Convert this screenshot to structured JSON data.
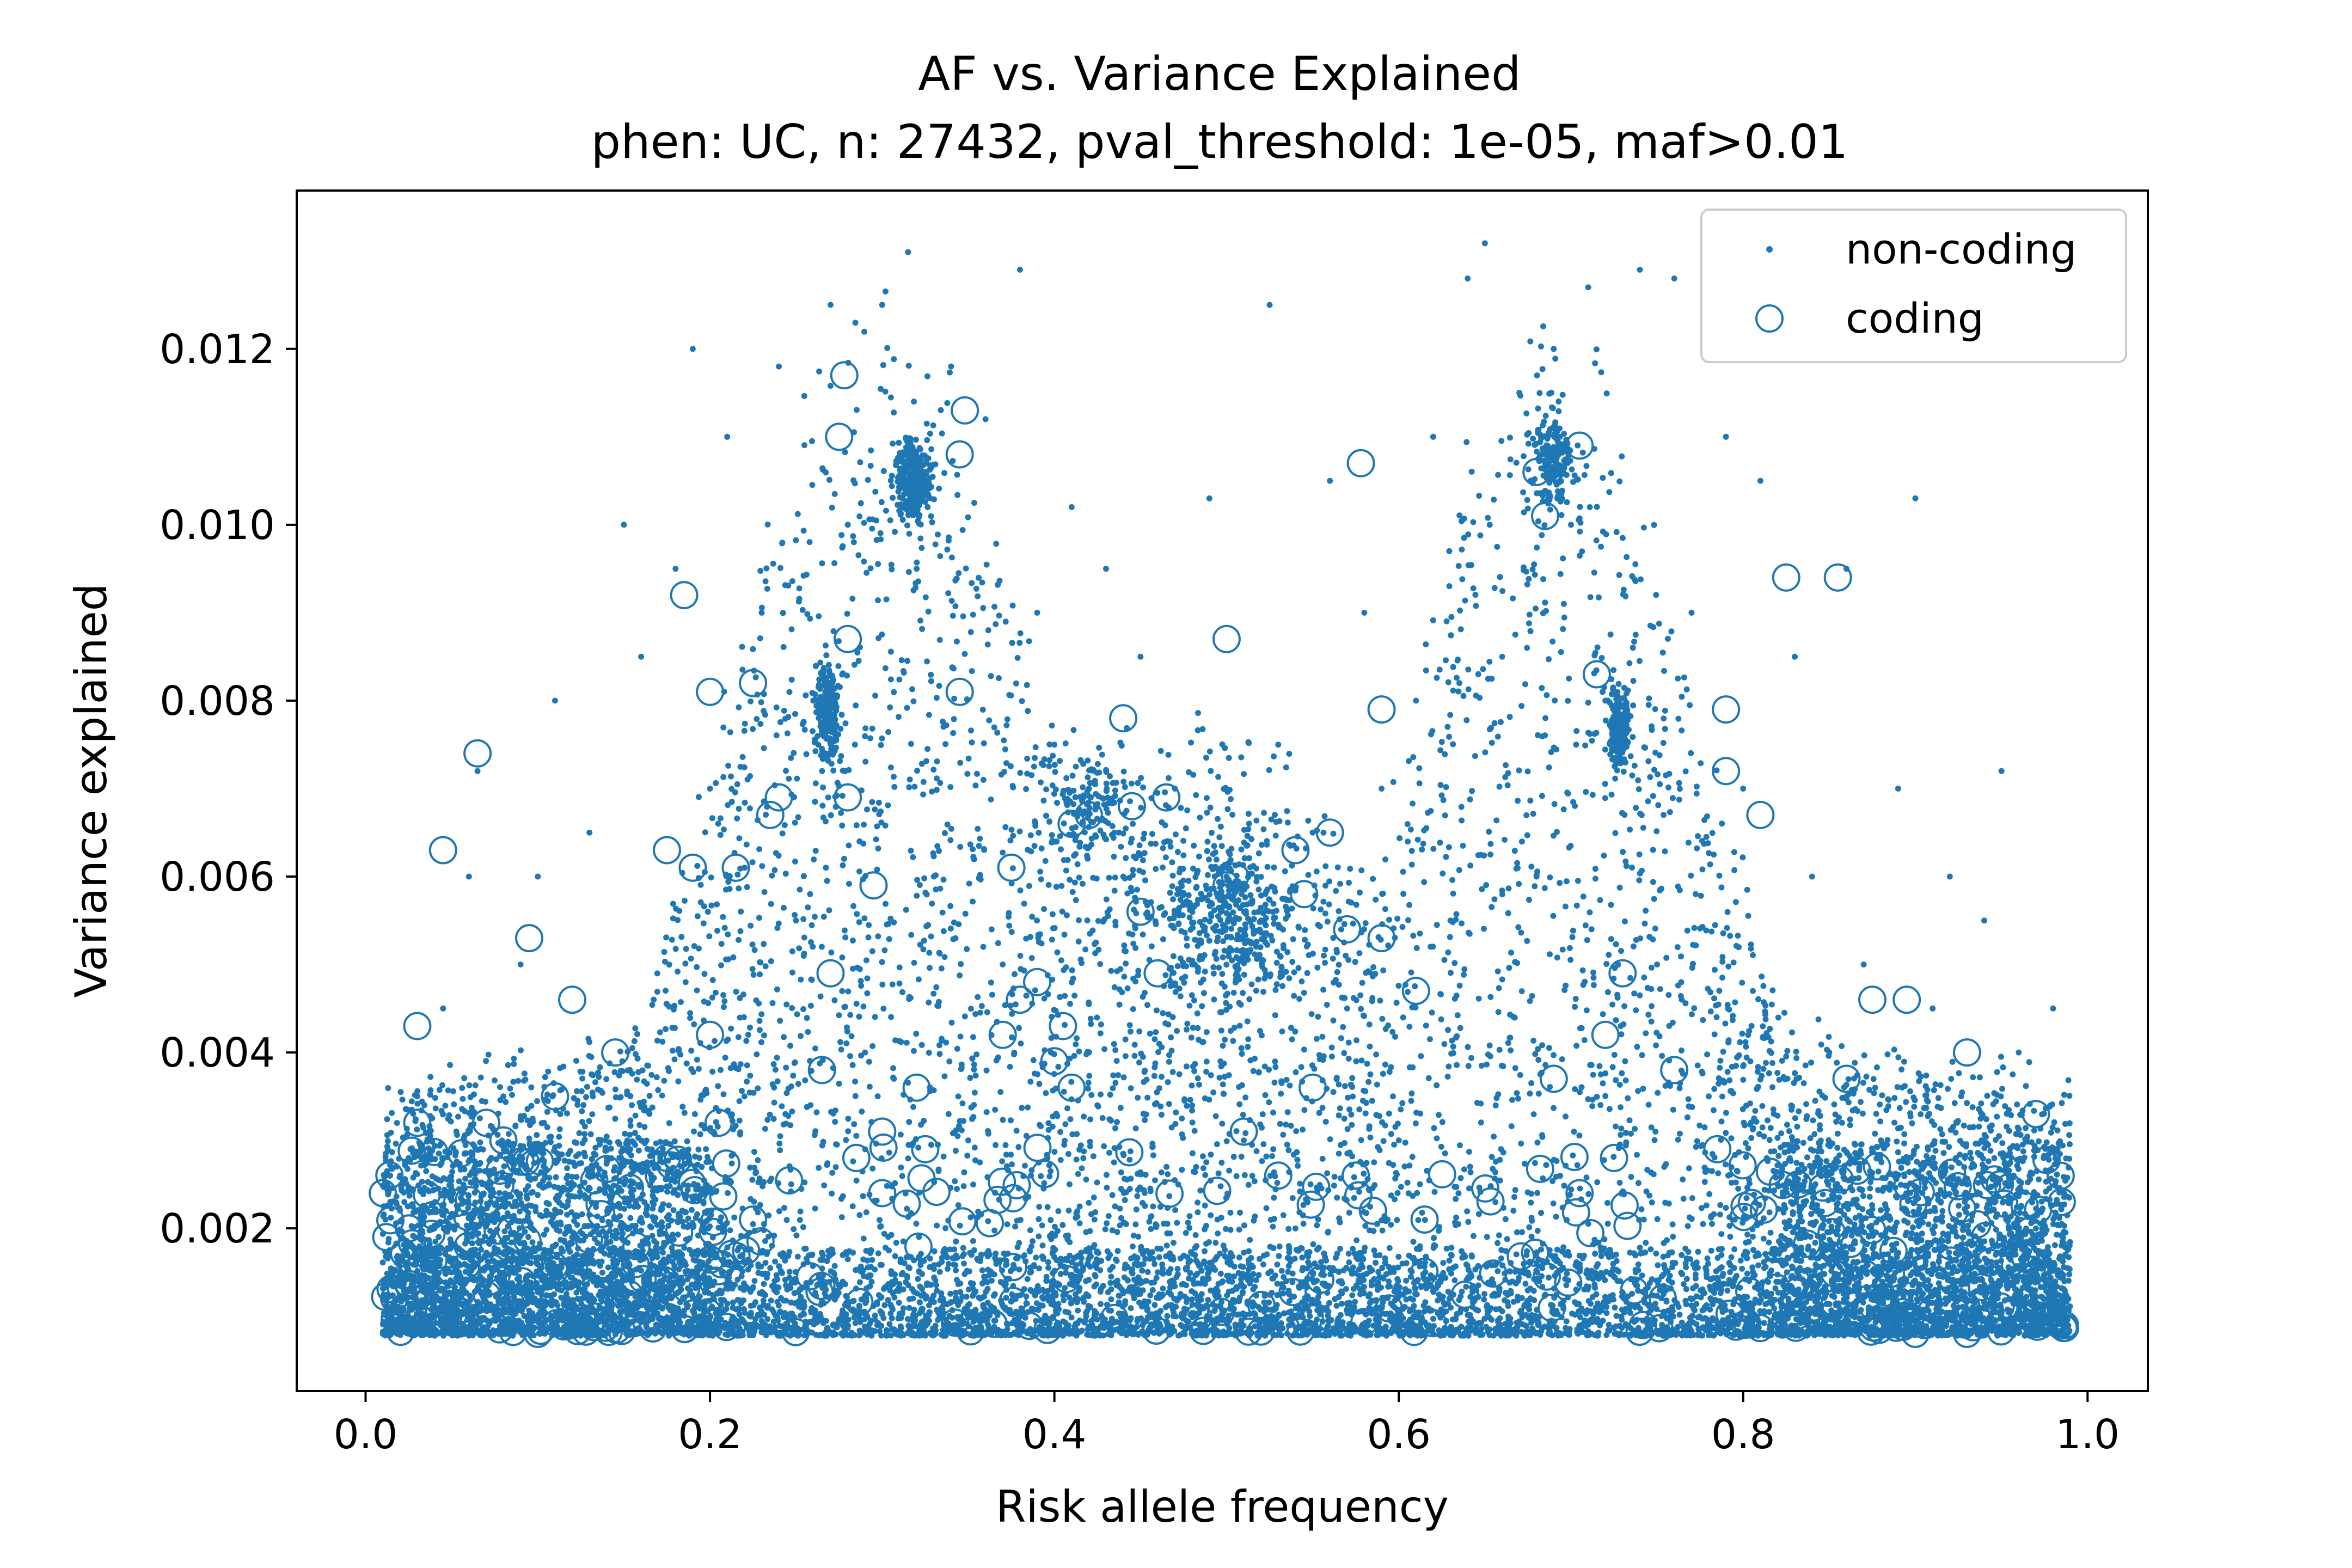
{
  "chart_data": {
    "type": "scatter",
    "title": "AF vs. Variance Explained",
    "subtitle": "phen: UC, n: 27432, pval_threshold: 1e-05, maf>0.01",
    "xlabel": "Risk allele frequency",
    "ylabel": "Variance explained",
    "xlim": [
      -0.04,
      1.035
    ],
    "ylim": [
      0.00015,
      0.0138
    ],
    "xticks": [
      0.0,
      0.2,
      0.4,
      0.6,
      0.8,
      1.0
    ],
    "xtick_labels": [
      "0.0",
      "0.2",
      "0.4",
      "0.6",
      "0.8",
      "1.0"
    ],
    "yticks": [
      0.002,
      0.004,
      0.006,
      0.008,
      0.01,
      0.012
    ],
    "ytick_labels": [
      "0.002",
      "0.004",
      "0.006",
      "0.008",
      "0.010",
      "0.012"
    ],
    "grid": false,
    "legend_position": "top-right",
    "color": "#1f77b4",
    "series": [
      {
        "name": "non-coding",
        "marker": "dot",
        "note": "Dense cloud of several thousand points; representative sample below",
        "points": [
          [
            0.01,
            0.0008
          ],
          [
            0.015,
            0.0015
          ],
          [
            0.02,
            0.0022
          ],
          [
            0.025,
            0.0028
          ],
          [
            0.03,
            0.0035
          ],
          [
            0.035,
            0.0012
          ],
          [
            0.04,
            0.002
          ],
          [
            0.045,
            0.0045
          ],
          [
            0.05,
            0.0018
          ],
          [
            0.06,
            0.006
          ],
          [
            0.065,
            0.0072
          ],
          [
            0.07,
            0.0025
          ],
          [
            0.08,
            0.0035
          ],
          [
            0.09,
            0.005
          ],
          [
            0.095,
            0.0013
          ],
          [
            0.1,
            0.006
          ],
          [
            0.105,
            0.0022
          ],
          [
            0.11,
            0.008
          ],
          [
            0.12,
            0.0019
          ],
          [
            0.13,
            0.0065
          ],
          [
            0.14,
            0.0028
          ],
          [
            0.15,
            0.01
          ],
          [
            0.16,
            0.0085
          ],
          [
            0.17,
            0.0015
          ],
          [
            0.18,
            0.0095
          ],
          [
            0.19,
            0.012
          ],
          [
            0.2,
            0.007
          ],
          [
            0.21,
            0.011
          ],
          [
            0.22,
            0.0035
          ],
          [
            0.23,
            0.009
          ],
          [
            0.24,
            0.0118
          ],
          [
            0.25,
            0.0055
          ],
          [
            0.26,
            0.008
          ],
          [
            0.27,
            0.0125
          ],
          [
            0.28,
            0.01
          ],
          [
            0.29,
            0.004
          ],
          [
            0.3,
            0.0125
          ],
          [
            0.31,
            0.0105
          ],
          [
            0.315,
            0.0131
          ],
          [
            0.32,
            0.0095
          ],
          [
            0.33,
            0.006
          ],
          [
            0.34,
            0.0118
          ],
          [
            0.35,
            0.003
          ],
          [
            0.36,
            0.0112
          ],
          [
            0.37,
            0.005
          ],
          [
            0.38,
            0.0129
          ],
          [
            0.39,
            0.009
          ],
          [
            0.4,
            0.0075
          ],
          [
            0.41,
            0.0102
          ],
          [
            0.42,
            0.004
          ],
          [
            0.43,
            0.0095
          ],
          [
            0.44,
            0.006
          ],
          [
            0.45,
            0.0085
          ],
          [
            0.46,
            0.0015
          ],
          [
            0.47,
            0.007
          ],
          [
            0.48,
            0.005
          ],
          [
            0.49,
            0.0103
          ],
          [
            0.5,
            0.006
          ],
          [
            0.51,
            0.003
          ],
          [
            0.52,
            0.0055
          ],
          [
            0.525,
            0.0125
          ],
          [
            0.53,
            0.0075
          ],
          [
            0.54,
            0.002
          ],
          [
            0.55,
            0.0065
          ],
          [
            0.56,
            0.0105
          ],
          [
            0.57,
            0.0045
          ],
          [
            0.58,
            0.009
          ],
          [
            0.59,
            0.007
          ],
          [
            0.6,
            0.003
          ],
          [
            0.61,
            0.008
          ],
          [
            0.62,
            0.011
          ],
          [
            0.63,
            0.0055
          ],
          [
            0.64,
            0.0128
          ],
          [
            0.65,
            0.0132
          ],
          [
            0.66,
            0.0085
          ],
          [
            0.67,
            0.0115
          ],
          [
            0.68,
            0.006
          ],
          [
            0.69,
            0.012
          ],
          [
            0.7,
            0.01
          ],
          [
            0.71,
            0.0127
          ],
          [
            0.72,
            0.008
          ],
          [
            0.73,
            0.0075
          ],
          [
            0.74,
            0.0129
          ],
          [
            0.75,
            0.005
          ],
          [
            0.76,
            0.0128
          ],
          [
            0.77,
            0.009
          ],
          [
            0.78,
            0.0035
          ],
          [
            0.79,
            0.011
          ],
          [
            0.8,
            0.007
          ],
          [
            0.81,
            0.0105
          ],
          [
            0.82,
            0.0025
          ],
          [
            0.83,
            0.0085
          ],
          [
            0.84,
            0.006
          ],
          [
            0.85,
            0.004
          ],
          [
            0.86,
            0.0095
          ],
          [
            0.87,
            0.005
          ],
          [
            0.88,
            0.003
          ],
          [
            0.89,
            0.007
          ],
          [
            0.9,
            0.0103
          ],
          [
            0.91,
            0.0045
          ],
          [
            0.92,
            0.006
          ],
          [
            0.93,
            0.0025
          ],
          [
            0.94,
            0.0055
          ],
          [
            0.95,
            0.0072
          ],
          [
            0.96,
            0.004
          ],
          [
            0.97,
            0.002
          ],
          [
            0.98,
            0.0045
          ],
          [
            0.985,
            0.0012
          ]
        ]
      },
      {
        "name": "coding",
        "marker": "open-circle",
        "points": [
          [
            0.01,
            0.0024
          ],
          [
            0.012,
            0.0019
          ],
          [
            0.03,
            0.0043
          ],
          [
            0.03,
            0.0032
          ],
          [
            0.045,
            0.0063
          ],
          [
            0.065,
            0.0074
          ],
          [
            0.07,
            0.0032
          ],
          [
            0.08,
            0.003
          ],
          [
            0.095,
            0.0053
          ],
          [
            0.1,
            0.0008
          ],
          [
            0.11,
            0.0035
          ],
          [
            0.12,
            0.0046
          ],
          [
            0.145,
            0.004
          ],
          [
            0.175,
            0.0063
          ],
          [
            0.175,
            0.0028
          ],
          [
            0.185,
            0.0092
          ],
          [
            0.19,
            0.0061
          ],
          [
            0.2,
            0.0081
          ],
          [
            0.2,
            0.0042
          ],
          [
            0.205,
            0.0032
          ],
          [
            0.215,
            0.0061
          ],
          [
            0.225,
            0.0082
          ],
          [
            0.225,
            0.0021
          ],
          [
            0.235,
            0.0067
          ],
          [
            0.24,
            0.0069
          ],
          [
            0.265,
            0.0038
          ],
          [
            0.27,
            0.0049
          ],
          [
            0.275,
            0.011
          ],
          [
            0.278,
            0.0117
          ],
          [
            0.28,
            0.0087
          ],
          [
            0.28,
            0.0069
          ],
          [
            0.285,
            0.0028
          ],
          [
            0.295,
            0.0059
          ],
          [
            0.3,
            0.0031
          ],
          [
            0.3,
            0.0024
          ],
          [
            0.32,
            0.0105
          ],
          [
            0.32,
            0.0036
          ],
          [
            0.325,
            0.0029
          ],
          [
            0.345,
            0.0108
          ],
          [
            0.348,
            0.0113
          ],
          [
            0.345,
            0.0081
          ],
          [
            0.37,
            0.0042
          ],
          [
            0.375,
            0.0061
          ],
          [
            0.38,
            0.0046
          ],
          [
            0.39,
            0.0048
          ],
          [
            0.4,
            0.0039
          ],
          [
            0.405,
            0.0043
          ],
          [
            0.41,
            0.0036
          ],
          [
            0.41,
            0.0066
          ],
          [
            0.42,
            0.0067
          ],
          [
            0.44,
            0.0078
          ],
          [
            0.445,
            0.0068
          ],
          [
            0.45,
            0.0056
          ],
          [
            0.46,
            0.0049
          ],
          [
            0.465,
            0.0069
          ],
          [
            0.5,
            0.0087
          ],
          [
            0.5,
            0.0059
          ],
          [
            0.505,
            0.006
          ],
          [
            0.51,
            0.0031
          ],
          [
            0.53,
            0.0026
          ],
          [
            0.54,
            0.0063
          ],
          [
            0.545,
            0.0058
          ],
          [
            0.55,
            0.0036
          ],
          [
            0.56,
            0.0065
          ],
          [
            0.57,
            0.0054
          ],
          [
            0.575,
            0.0026
          ],
          [
            0.578,
            0.0107
          ],
          [
            0.585,
            0.0022
          ],
          [
            0.59,
            0.0079
          ],
          [
            0.59,
            0.0053
          ],
          [
            0.61,
            0.0047
          ],
          [
            0.615,
            0.0021
          ],
          [
            0.68,
            0.0106
          ],
          [
            0.685,
            0.0101
          ],
          [
            0.69,
            0.0037
          ],
          [
            0.705,
            0.0024
          ],
          [
            0.705,
            0.0109
          ],
          [
            0.715,
            0.0083
          ],
          [
            0.72,
            0.0042
          ],
          [
            0.725,
            0.0028
          ],
          [
            0.73,
            0.0049
          ],
          [
            0.76,
            0.0038
          ],
          [
            0.785,
            0.0029
          ],
          [
            0.79,
            0.0079
          ],
          [
            0.79,
            0.0072
          ],
          [
            0.81,
            0.0067
          ],
          [
            0.825,
            0.0094
          ],
          [
            0.855,
            0.0094
          ],
          [
            0.86,
            0.0037
          ],
          [
            0.875,
            0.0046
          ],
          [
            0.895,
            0.0046
          ],
          [
            0.9,
            0.0008
          ],
          [
            0.93,
            0.004
          ],
          [
            0.93,
            0.0008
          ],
          [
            0.97,
            0.0033
          ],
          [
            0.985,
            0.0023
          ]
        ]
      }
    ]
  }
}
